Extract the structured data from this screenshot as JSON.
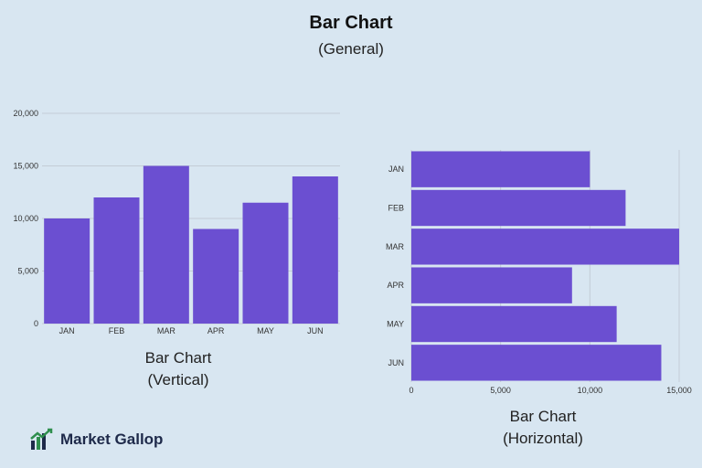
{
  "header": {
    "title": "Bar Chart",
    "subtitle": "(General)"
  },
  "chart_data": [
    {
      "type": "bar",
      "orientation": "vertical",
      "categories": [
        "JAN",
        "FEB",
        "MAR",
        "APR",
        "MAY",
        "JUN"
      ],
      "values": [
        10000,
        12000,
        15000,
        9000,
        11500,
        14000
      ],
      "ylim": [
        0,
        20000
      ],
      "yticks": [
        "0",
        "5,000",
        "10,000",
        "15,000",
        "20,000"
      ],
      "grid": true,
      "caption_line1": "Bar Chart",
      "caption_line2": "(Vertical)"
    },
    {
      "type": "bar",
      "orientation": "horizontal",
      "categories": [
        "JAN",
        "FEB",
        "MAR",
        "APR",
        "MAY",
        "JUN"
      ],
      "values": [
        10000,
        12000,
        15000,
        9000,
        11500,
        14000
      ],
      "xlim": [
        0,
        15000
      ],
      "xticks": [
        "0",
        "5,000",
        "10,000",
        "15,000"
      ],
      "grid": true,
      "caption_line1": "Bar Chart",
      "caption_line2": "(Horizontal)"
    }
  ],
  "colors": {
    "bar": "#6b4fd1",
    "grid": "#c3ccd6",
    "background": "#d8e6f1"
  },
  "brand": {
    "name_part1": "Market",
    "name_part2": "Gallop",
    "icon": "market-gallop-logo-icon"
  }
}
